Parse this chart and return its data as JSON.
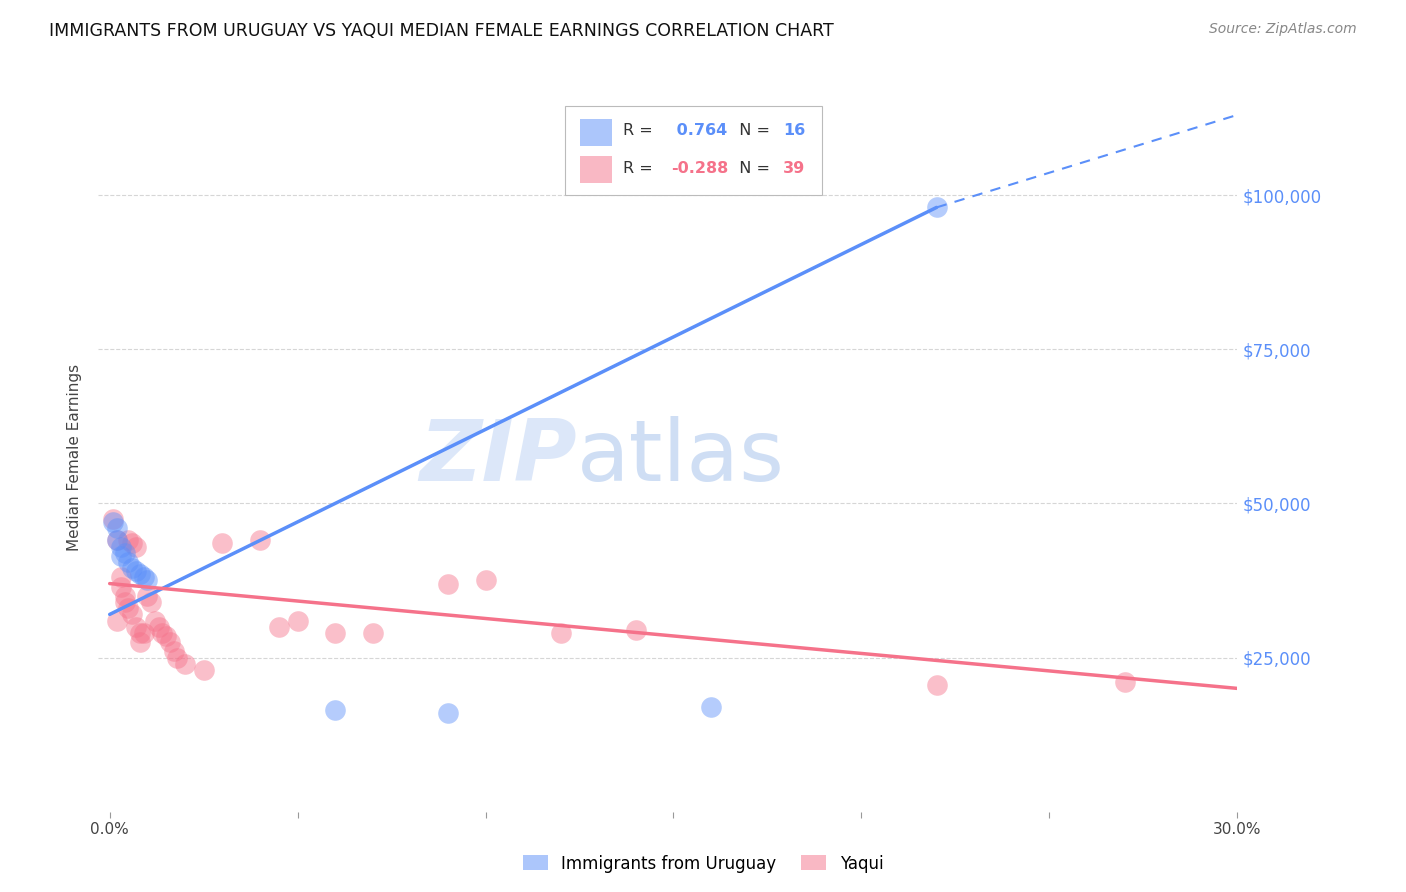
{
  "title": "IMMIGRANTS FROM URUGUAY VS YAQUI MEDIAN FEMALE EARNINGS CORRELATION CHART",
  "source": "Source: ZipAtlas.com",
  "ylabel": "Median Female Earnings",
  "x_min": 0.0,
  "x_max": 0.3,
  "y_min": 0,
  "y_max": 115000,
  "y_ticks": [
    25000,
    50000,
    75000,
    100000
  ],
  "y_tick_labels": [
    "$25,000",
    "$50,000",
    "$75,000",
    "$100,000"
  ],
  "bg_color": "#ffffff",
  "grid_color": "#cccccc",
  "uruguay_color": "#5b8ff9",
  "yaqui_color": "#f5728a",
  "uruguay_R": 0.764,
  "uruguay_N": 16,
  "yaqui_R": -0.288,
  "yaqui_N": 39,
  "watermark_zip": "ZIP",
  "watermark_atlas": "atlas",
  "uruguay_points": [
    [
      0.001,
      47000
    ],
    [
      0.002,
      46000
    ],
    [
      0.002,
      44000
    ],
    [
      0.003,
      43000
    ],
    [
      0.003,
      41500
    ],
    [
      0.004,
      42000
    ],
    [
      0.005,
      40500
    ],
    [
      0.006,
      39500
    ],
    [
      0.007,
      39000
    ],
    [
      0.008,
      38500
    ],
    [
      0.009,
      38000
    ],
    [
      0.01,
      37500
    ],
    [
      0.06,
      16500
    ],
    [
      0.09,
      16000
    ],
    [
      0.16,
      17000
    ],
    [
      0.22,
      98000
    ]
  ],
  "yaqui_points": [
    [
      0.001,
      47500
    ],
    [
      0.002,
      31000
    ],
    [
      0.002,
      44000
    ],
    [
      0.003,
      36500
    ],
    [
      0.003,
      38000
    ],
    [
      0.004,
      35000
    ],
    [
      0.004,
      34000
    ],
    [
      0.005,
      33000
    ],
    [
      0.005,
      44000
    ],
    [
      0.006,
      32000
    ],
    [
      0.006,
      43500
    ],
    [
      0.007,
      43000
    ],
    [
      0.007,
      30000
    ],
    [
      0.008,
      29000
    ],
    [
      0.008,
      27500
    ],
    [
      0.009,
      29000
    ],
    [
      0.01,
      35000
    ],
    [
      0.011,
      34000
    ],
    [
      0.012,
      31000
    ],
    [
      0.013,
      30000
    ],
    [
      0.014,
      29000
    ],
    [
      0.015,
      28500
    ],
    [
      0.016,
      27500
    ],
    [
      0.017,
      26000
    ],
    [
      0.018,
      25000
    ],
    [
      0.02,
      24000
    ],
    [
      0.025,
      23000
    ],
    [
      0.03,
      43500
    ],
    [
      0.04,
      44000
    ],
    [
      0.045,
      30000
    ],
    [
      0.05,
      31000
    ],
    [
      0.06,
      29000
    ],
    [
      0.07,
      29000
    ],
    [
      0.09,
      37000
    ],
    [
      0.1,
      37500
    ],
    [
      0.12,
      29000
    ],
    [
      0.14,
      29500
    ],
    [
      0.22,
      20500
    ],
    [
      0.27,
      21000
    ]
  ],
  "line_uru_x0": 0.0,
  "line_uru_y0": 32000,
  "line_uru_x1": 0.22,
  "line_uru_y1": 98000,
  "line_uru_dash_x1": 0.3,
  "line_uru_dash_y1": 113000,
  "line_yaq_x0": 0.0,
  "line_yaq_y0": 37000,
  "line_yaq_x1": 0.3,
  "line_yaq_y1": 20000
}
